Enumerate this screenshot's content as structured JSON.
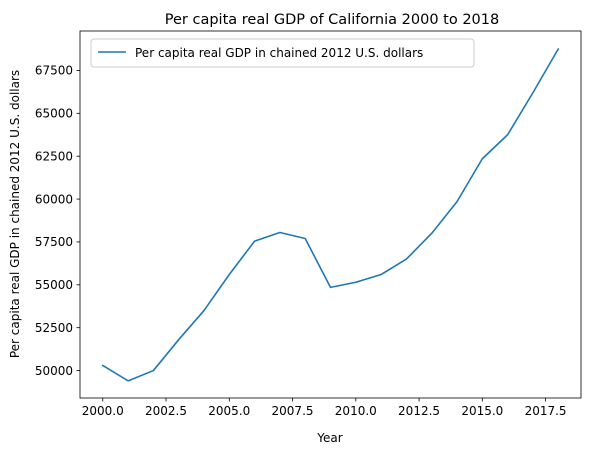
{
  "chart_data": {
    "type": "line",
    "title": "Per capita real GDP of California 2000 to 2018",
    "xlabel": "Year",
    "ylabel": "Per capita real GDP in chained 2012 U.S. dollars",
    "xlim": [
      1999.1,
      2018.9
    ],
    "ylim": [
      48400,
      69800
    ],
    "x_ticks": [
      2000.0,
      2002.5,
      2005.0,
      2007.5,
      2010.0,
      2012.5,
      2015.0,
      2017.5
    ],
    "x_tick_labels": [
      "2000.0",
      "2002.5",
      "2005.0",
      "2007.5",
      "2010.0",
      "2012.5",
      "2015.0",
      "2017.5"
    ],
    "y_ticks": [
      50000,
      52500,
      55000,
      57500,
      60000,
      62500,
      65000,
      67500
    ],
    "y_tick_labels": [
      "50000",
      "52500",
      "55000",
      "57500",
      "60000",
      "62500",
      "65000",
      "67500"
    ],
    "legend_position": "top-left",
    "grid": false,
    "series": [
      {
        "name": "Per capita real GDP in chained 2012 U.S. dollars",
        "color": "#1f77b4",
        "x": [
          2000,
          2001,
          2002,
          2003,
          2004,
          2005,
          2006,
          2007,
          2008,
          2009,
          2010,
          2011,
          2012,
          2013,
          2014,
          2015,
          2016,
          2017,
          2018
        ],
        "y": [
          50300,
          49400,
          50000,
          51800,
          53500,
          55600,
          57550,
          58050,
          57700,
          54850,
          55150,
          55600,
          56500,
          58000,
          59850,
          62350,
          63750,
          66200,
          68750
        ]
      }
    ]
  }
}
